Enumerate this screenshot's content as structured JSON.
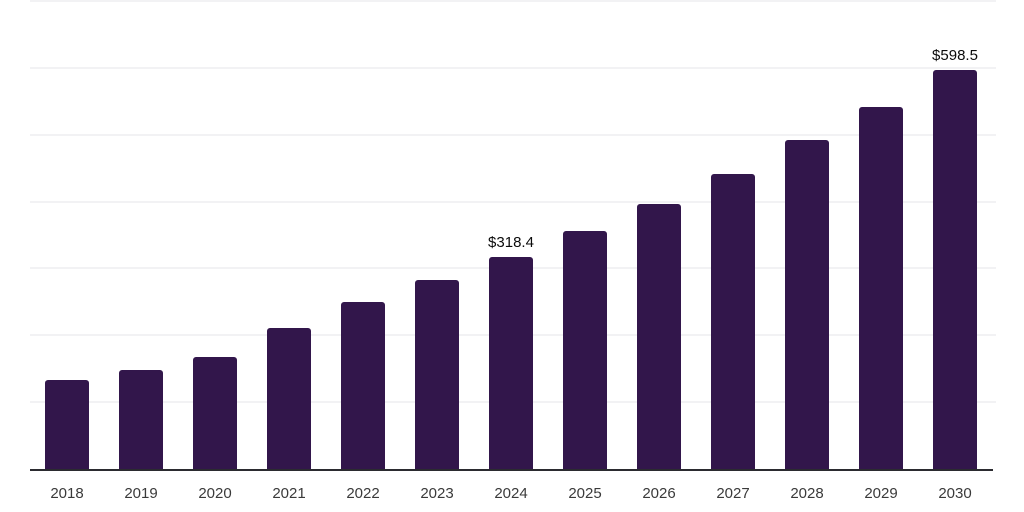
{
  "chart_data": {
    "type": "bar",
    "title": "",
    "categories": [
      "2018",
      "2019",
      "2020",
      "2021",
      "2022",
      "2023",
      "2024",
      "2025",
      "2026",
      "2027",
      "2028",
      "2029",
      "2030"
    ],
    "values": [
      134.8,
      149.5,
      169.5,
      212.5,
      251.5,
      284.5,
      318.4,
      358.0,
      398.5,
      443.5,
      493.0,
      543.5,
      598.5
    ],
    "bar_labels": [
      "",
      "",
      "",
      "",
      "",
      "",
      "$318.4",
      "",
      "",
      "",
      "",
      "",
      "$598.5"
    ],
    "unit": "$",
    "xlabel": "",
    "ylabel": "",
    "ylim": [
      0,
      700
    ],
    "grid_interval": 100,
    "grid": "on",
    "legend": "none",
    "y_axis_tick_labels": "none",
    "colors": {
      "bar": "#32164B",
      "gridline": "#f2f2f4",
      "axis_line": "#2b2b30",
      "x_label": "#3a3a3a",
      "data_label": "#0b0b0b",
      "background": "#ffffff"
    }
  }
}
